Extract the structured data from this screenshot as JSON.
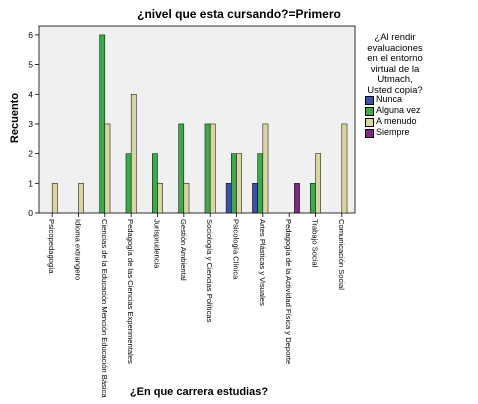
{
  "chart_data": {
    "type": "bar",
    "title": "¿nivel que esta cursando?=Primero",
    "xlabel": "¿En que carrera estudias?",
    "ylabel": "Recuento",
    "ylim": [
      0,
      6.3
    ],
    "yticks": [
      "0",
      "1",
      "2",
      "3",
      "4",
      "5",
      "6"
    ],
    "grid": false,
    "legend": {
      "position": "right",
      "title_lines": [
        "¿Al rendir",
        "evaluaciones",
        "en el entorno",
        "virtual de la",
        "Utmach,",
        "Usted copia?"
      ]
    },
    "categories": [
      "Psicopedagogía",
      "Idioma extrangero",
      "Ciencias de la Educación Mención Educación Básica",
      "Pedagogía de las Ciencias Experimentales",
      "Jurisprudencia",
      "Gestión Ambiental",
      "Sociología y Ciencias Políticas",
      "Psicología Clínica",
      "Artes Plásticas y Visuales",
      "Pedagogía de la Actividad Física y Deporte",
      "Trabajo Social",
      "Comunicación Social"
    ],
    "series": [
      {
        "name": "Nunca",
        "color": "#3a4fa8",
        "values": [
          0,
          0,
          0,
          0,
          0,
          0,
          0,
          1,
          1,
          0,
          0,
          0
        ]
      },
      {
        "name": "Alguna vez",
        "color": "#3fa84a",
        "values": [
          0,
          0,
          6,
          2,
          2,
          3,
          3,
          2,
          2,
          0,
          1,
          0
        ]
      },
      {
        "name": "A menudo",
        "color": "#d8d5a0",
        "values": [
          1,
          1,
          3,
          4,
          1,
          1,
          3,
          2,
          3,
          0,
          2,
          3
        ]
      },
      {
        "name": "Siempre",
        "color": "#7a2c7e",
        "values": [
          0,
          0,
          0,
          0,
          0,
          0,
          0,
          0,
          0,
          1,
          0,
          0
        ]
      }
    ],
    "colors": {
      "plot_background": "#f0f0f0",
      "axis": "#000000"
    }
  }
}
